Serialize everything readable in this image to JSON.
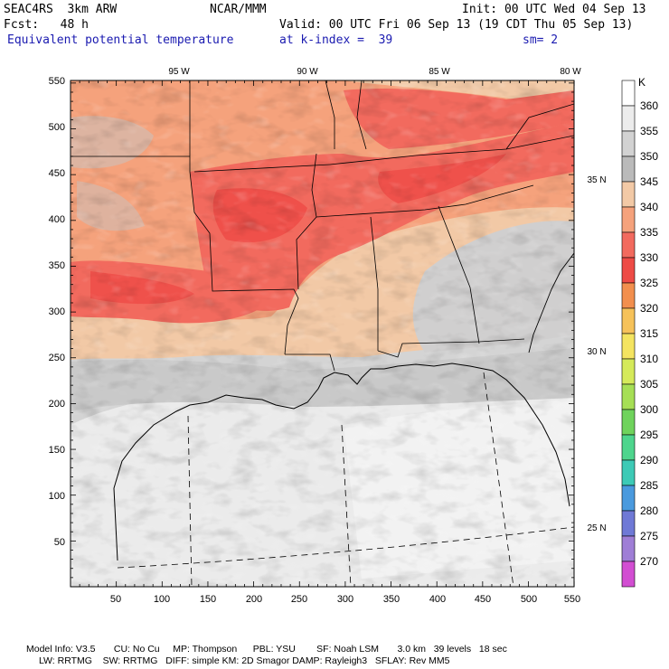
{
  "header": {
    "model": "SEAC4RS  3km ARW",
    "org": "NCAR/MMM",
    "init": "Init: 00 UTC Wed 04 Sep 13",
    "fcst": "Fcst:   48 h",
    "valid": "Valid: 00 UTC Fri 06 Sep 13 (19 CDT Thu 05 Sep 13)",
    "field": "Equivalent potential temperature",
    "level": "at k-index =  39",
    "smooth": "sm= 2"
  },
  "map": {
    "lon_labels": [
      "95 W",
      "90 W",
      "85 W",
      "80 W"
    ],
    "lat_labels": [
      "35 N",
      "30 N",
      "25 N"
    ],
    "x_ticks": [
      "50",
      "100",
      "150",
      "200",
      "250",
      "300",
      "350",
      "400",
      "450",
      "500",
      "550"
    ],
    "y_ticks": [
      "550",
      "500",
      "450",
      "400",
      "350",
      "300",
      "250",
      "200",
      "150",
      "100",
      "50"
    ]
  },
  "colorbar": {
    "unit": "K",
    "levels": [
      "360",
      "355",
      "350",
      "345",
      "340",
      "335",
      "330",
      "325",
      "320",
      "315",
      "310",
      "305",
      "300",
      "295",
      "290",
      "285",
      "280",
      "275",
      "270"
    ],
    "colors": [
      "#ffffff",
      "#ececec",
      "#d2d2d2",
      "#bababa",
      "#f2c9a6",
      "#f5a27c",
      "#f26a5e",
      "#ee4b46",
      "#f28f4e",
      "#f6c25a",
      "#f4e460",
      "#d5ea5a",
      "#a6df55",
      "#6fd35c",
      "#4ed58d",
      "#3dcab6",
      "#4a9ade",
      "#6f79d6",
      "#9f7ed6",
      "#d24ed2"
    ]
  },
  "footer": {
    "line1": "Model Info: V3.5       CU: No Cu     MP: Thompson      PBL: YSU        SF: Noah LSM       3.0 km   39 levels   18 sec",
    "line2": "LW: RRTMG    SW: RRTMG   DIFF: simple KM: 2D Smagor DAMP: Rayleigh3   SFLAY: Rev MM5"
  }
}
